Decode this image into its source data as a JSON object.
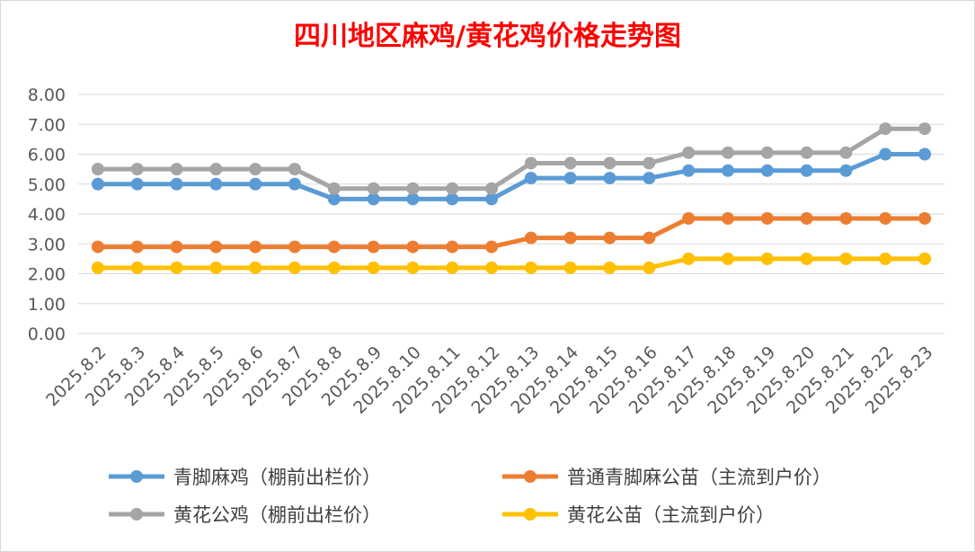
{
  "chart_data": {
    "type": "line",
    "title": "四川地区麻鸡/黄花鸡价格走势图",
    "xlabel": "",
    "ylabel": "",
    "ylim": [
      0,
      8
    ],
    "ytick_step": 1,
    "ytick_labels": [
      "0.00",
      "1.00",
      "2.00",
      "3.00",
      "4.00",
      "5.00",
      "6.00",
      "7.00",
      "8.00"
    ],
    "grid": true,
    "legend_position": "bottom",
    "categories": [
      "2025.8.2",
      "2025.8.3",
      "2025.8.4",
      "2025.8.5",
      "2025.8.6",
      "2025.8.7",
      "2025.8.8",
      "2025.8.9",
      "2025.8.10",
      "2025.8.11",
      "2025.8.12",
      "2025.8.13",
      "2025.8.14",
      "2025.8.15",
      "2025.8.16",
      "2025.8.17",
      "2025.8.18",
      "2025.8.19",
      "2025.8.20",
      "2025.8.21",
      "2025.8.22",
      "2025.8.23"
    ],
    "series": [
      {
        "name": "青脚麻鸡（棚前出栏价）",
        "color": "#5b9bd5",
        "values": [
          5.0,
          5.0,
          5.0,
          5.0,
          5.0,
          5.0,
          4.5,
          4.5,
          4.5,
          4.5,
          4.5,
          5.2,
          5.2,
          5.2,
          5.2,
          5.45,
          5.45,
          5.45,
          5.45,
          5.45,
          6.0,
          6.0
        ]
      },
      {
        "name": "普通青脚麻公苗（主流到户价）",
        "color": "#ed7d31",
        "values": [
          2.9,
          2.9,
          2.9,
          2.9,
          2.9,
          2.9,
          2.9,
          2.9,
          2.9,
          2.9,
          2.9,
          3.2,
          3.2,
          3.2,
          3.2,
          3.85,
          3.85,
          3.85,
          3.85,
          3.85,
          3.85,
          3.85
        ]
      },
      {
        "name": "黄花公鸡（棚前出栏价）",
        "color": "#a5a5a5",
        "values": [
          5.5,
          5.5,
          5.5,
          5.5,
          5.5,
          5.5,
          4.85,
          4.85,
          4.85,
          4.85,
          4.85,
          5.7,
          5.7,
          5.7,
          5.7,
          6.05,
          6.05,
          6.05,
          6.05,
          6.05,
          6.85,
          6.85
        ]
      },
      {
        "name": "黄花公苗（主流到户价）",
        "color": "#ffc000",
        "values": [
          2.2,
          2.2,
          2.2,
          2.2,
          2.2,
          2.2,
          2.2,
          2.2,
          2.2,
          2.2,
          2.2,
          2.2,
          2.2,
          2.2,
          2.2,
          2.5,
          2.5,
          2.5,
          2.5,
          2.5,
          2.5,
          2.5
        ]
      }
    ]
  }
}
